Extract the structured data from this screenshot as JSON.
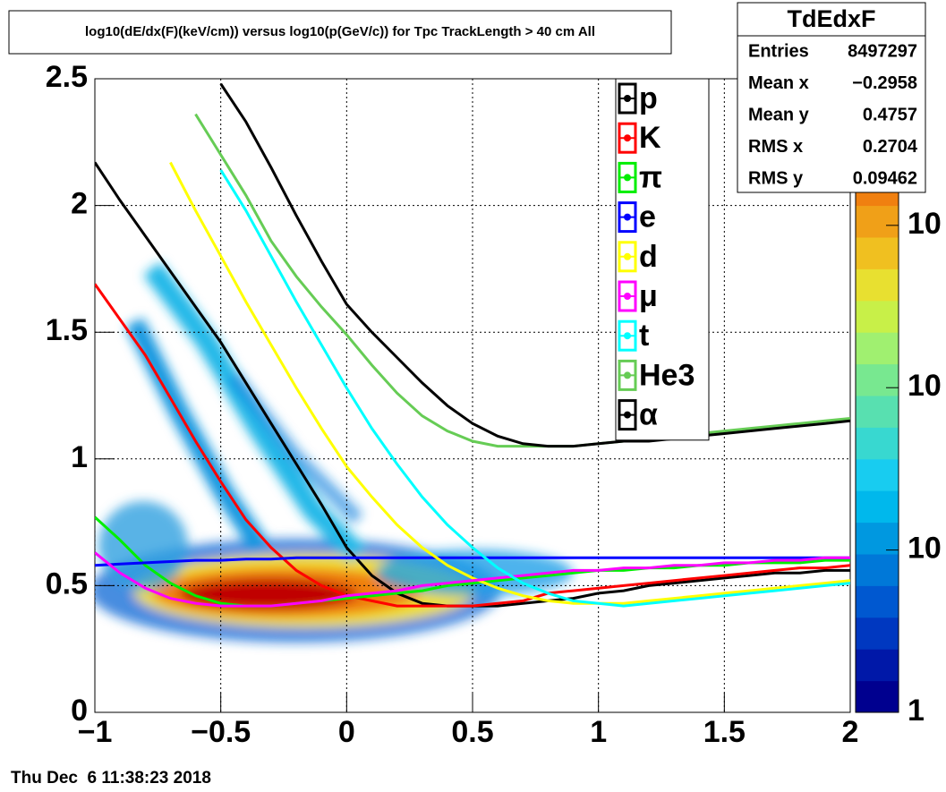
{
  "chart_data": {
    "type": "line",
    "title": "log10(dE/dx(F)(keV/cm)) versus log10(p(GeV/c)) for Tpc TrackLength > 40 cm All",
    "footer": "Thu Dec  6 11:38:23 2018",
    "x": [
      -1,
      -0.9,
      -0.8,
      -0.7,
      -0.6,
      -0.5,
      -0.4,
      -0.3,
      -0.2,
      -0.1,
      0,
      0.1,
      0.2,
      0.3,
      0.4,
      0.5,
      0.6,
      0.7,
      0.8,
      0.9,
      1.0,
      1.1,
      1.2,
      1.3,
      1.4,
      1.5,
      1.6,
      1.7,
      1.8,
      1.9,
      2.0
    ],
    "series": [
      {
        "name": "p",
        "color": "#000000",
        "values": [
          2.17,
          2.02,
          1.88,
          1.74,
          1.6,
          1.46,
          1.3,
          1.14,
          0.98,
          0.82,
          0.65,
          0.54,
          0.47,
          0.43,
          0.42,
          0.42,
          0.42,
          0.43,
          0.44,
          0.45,
          0.47,
          0.48,
          0.5,
          0.51,
          0.52,
          0.53,
          0.54,
          0.55,
          0.55,
          0.56,
          0.56
        ]
      },
      {
        "name": "K",
        "color": "#ff0000",
        "values": [
          1.69,
          1.55,
          1.41,
          1.24,
          1.07,
          0.91,
          0.76,
          0.65,
          0.56,
          0.5,
          0.46,
          0.44,
          0.42,
          0.42,
          0.42,
          0.42,
          0.43,
          0.44,
          0.47,
          0.48,
          0.49,
          0.5,
          0.51,
          0.52,
          0.53,
          0.54,
          0.55,
          0.56,
          0.57,
          0.57,
          0.58
        ]
      },
      {
        "name": "π",
        "color": "#00ee00",
        "values": [
          0.77,
          0.68,
          0.58,
          0.51,
          0.46,
          0.43,
          0.42,
          0.42,
          0.43,
          0.44,
          0.45,
          0.46,
          0.47,
          0.48,
          0.5,
          0.51,
          0.52,
          0.53,
          0.54,
          0.55,
          0.56,
          0.56,
          0.57,
          0.57,
          0.58,
          0.58,
          0.59,
          0.59,
          0.59,
          0.6,
          0.6
        ]
      },
      {
        "name": "e",
        "color": "#0000ff",
        "values": [
          0.58,
          0.585,
          0.59,
          0.595,
          0.6,
          0.6,
          0.605,
          0.605,
          0.61,
          0.61,
          0.61,
          0.61,
          0.61,
          0.61,
          0.61,
          0.61,
          0.61,
          0.61,
          0.61,
          0.61,
          0.61,
          0.61,
          0.61,
          0.61,
          0.61,
          0.61,
          0.61,
          0.61,
          0.61,
          0.61,
          0.61
        ]
      },
      {
        "name": "d",
        "color": "#ffff00",
        "values": [
          null,
          null,
          null,
          2.17,
          1.98,
          1.8,
          1.62,
          1.45,
          1.28,
          1.12,
          0.97,
          0.85,
          0.74,
          0.65,
          0.58,
          0.53,
          0.49,
          0.46,
          0.44,
          0.43,
          0.43,
          0.43,
          0.44,
          0.45,
          0.46,
          0.47,
          0.48,
          0.49,
          0.5,
          0.51,
          0.52
        ]
      },
      {
        "name": "μ",
        "color": "#ff00ff",
        "values": [
          0.63,
          0.55,
          0.49,
          0.45,
          0.43,
          0.42,
          0.42,
          0.42,
          0.43,
          0.44,
          0.46,
          0.47,
          0.48,
          0.5,
          0.51,
          0.52,
          0.53,
          0.54,
          0.55,
          0.56,
          0.56,
          0.57,
          0.57,
          0.58,
          0.58,
          0.59,
          0.59,
          0.6,
          0.6,
          0.61,
          0.61
        ]
      },
      {
        "name": "t",
        "color": "#00ffff",
        "values": [
          null,
          null,
          null,
          null,
          null,
          2.14,
          1.98,
          1.8,
          1.62,
          1.45,
          1.28,
          1.12,
          0.98,
          0.85,
          0.74,
          0.65,
          0.57,
          0.51,
          0.47,
          0.44,
          0.43,
          0.42,
          0.43,
          0.44,
          0.45,
          0.46,
          0.47,
          0.48,
          0.49,
          0.5,
          0.51
        ]
      },
      {
        "name": "He3",
        "color": "#66cc55",
        "values": [
          null,
          null,
          null,
          null,
          2.36,
          2.2,
          2.04,
          1.86,
          1.72,
          1.6,
          1.49,
          1.37,
          1.26,
          1.17,
          1.11,
          1.07,
          1.05,
          1.05,
          1.05,
          1.05,
          1.06,
          1.07,
          1.08,
          1.09,
          1.1,
          1.11,
          1.12,
          1.13,
          1.14,
          1.15,
          1.16
        ]
      },
      {
        "name": "α",
        "color": "#000000",
        "values": [
          null,
          null,
          null,
          null,
          null,
          2.48,
          2.33,
          2.15,
          1.96,
          1.78,
          1.61,
          1.5,
          1.4,
          1.3,
          1.21,
          1.14,
          1.09,
          1.06,
          1.05,
          1.05,
          1.06,
          1.07,
          1.07,
          1.08,
          1.09,
          1.1,
          1.11,
          1.12,
          1.13,
          1.14,
          1.15
        ]
      }
    ],
    "xlim": [
      -1,
      2
    ],
    "ylim": [
      0,
      2.5
    ],
    "xticks": [
      {
        "value": -1,
        "label": "−1"
      },
      {
        "value": -0.5,
        "label": "−0.5"
      },
      0,
      0.5,
      1,
      1.5,
      2
    ],
    "yticks": [
      0,
      0.5,
      1,
      1.5,
      2,
      2.5
    ],
    "grid": true,
    "legend": "top right",
    "zlim": [
      1,
      8000
    ],
    "zlog": true,
    "zticks": [
      1,
      {
        "value": 10,
        "label": "10"
      },
      {
        "value": 100,
        "label": "10"
      },
      {
        "value": 1000,
        "label": "10"
      }
    ],
    "palette": [
      "#00008f",
      "#0018a8",
      "#0038c0",
      "#0058d0",
      "#0078d8",
      "#0098e0",
      "#00b8ec",
      "#18ccf0",
      "#38d8d0",
      "#58e0b0",
      "#78e890",
      "#a0f070",
      "#c8f048",
      "#e8e030",
      "#f0c020",
      "#f0a018",
      "#f08010",
      "#f05810",
      "#f03008",
      "#e01000"
    ],
    "stats": {
      "title": "TdEdxF",
      "rows": [
        [
          "Entries",
          "8497297"
        ],
        [
          "Mean x",
          "−0.2958"
        ],
        [
          "Mean y",
          "0.4757"
        ],
        [
          "RMS x",
          "0.2704"
        ],
        [
          "RMS y",
          "0.09462"
        ]
      ]
    }
  }
}
